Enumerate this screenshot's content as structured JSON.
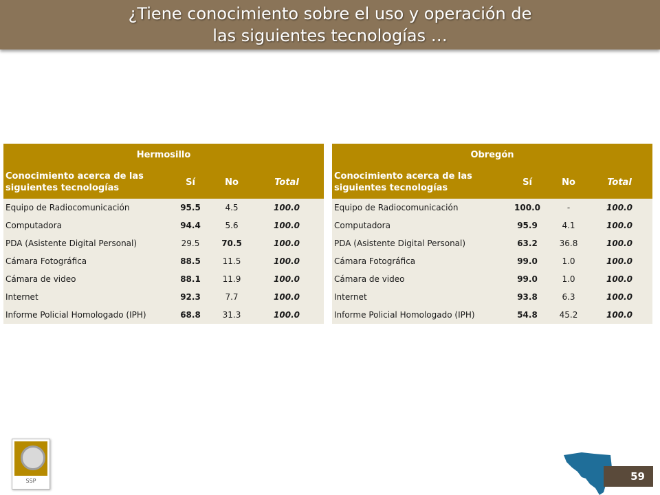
{
  "title": {
    "line1": "¿Tiene conocimiento sobre el uso y operación de",
    "line2": "las siguientes tecnologías …"
  },
  "column_headers": {
    "label": "Conocimiento acerca de las siguientes tecnologías",
    "si": "Sí",
    "no": "No",
    "total": "Total"
  },
  "tables": [
    {
      "region": "Hermosillo",
      "rows": [
        {
          "label": "Equipo de Radiocomunicación",
          "si": "95.5",
          "no": "4.5",
          "total": "100.0"
        },
        {
          "label": "Computadora",
          "si": "94.4",
          "no": "5.6",
          "total": "100.0"
        },
        {
          "label": "PDA (Asistente Digital Personal)",
          "si": "29.5",
          "no": "70.5",
          "total": "100.0"
        },
        {
          "label": "Cámara Fotográfica",
          "si": "88.5",
          "no": "11.5",
          "total": "100.0"
        },
        {
          "label": "Cámara de video",
          "si": "88.1",
          "no": "11.9",
          "total": "100.0"
        },
        {
          "label": "Internet",
          "si": "92.3",
          "no": "7.7",
          "total": "100.0"
        },
        {
          "label": "Informe Policial Homologado (IPH)",
          "si": "68.8",
          "no": "31.3",
          "total": "100.0"
        }
      ]
    },
    {
      "region": "Obregón",
      "rows": [
        {
          "label": "Equipo de Radiocomunicación",
          "si": "100.0",
          "no": "-",
          "total": "100.0"
        },
        {
          "label": "Computadora",
          "si": "95.9",
          "no": "4.1",
          "total": "100.0"
        },
        {
          "label": "PDA (Asistente Digital Personal)",
          "si": "63.2",
          "no": "36.8",
          "total": "100.0"
        },
        {
          "label": "Cámara Fotográfica",
          "si": "99.0",
          "no": "1.0",
          "total": "100.0"
        },
        {
          "label": "Cámara de video",
          "si": "99.0",
          "no": "1.0",
          "total": "100.0"
        },
        {
          "label": "Internet",
          "si": "93.8",
          "no": "6.3",
          "total": "100.0"
        },
        {
          "label": "Informe Policial Homologado (IPH)",
          "si": "54.8",
          "no": "45.2",
          "total": "100.0"
        }
      ]
    }
  ],
  "footer": {
    "logo_text": "SSP",
    "page_number": "59"
  },
  "colors": {
    "header_bar": "#8a7458",
    "table_header": "#b68a00",
    "row_background": "#eeebe1",
    "map": "#1f6e99"
  }
}
